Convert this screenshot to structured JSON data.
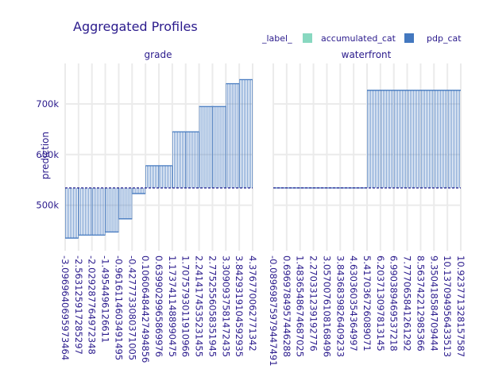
{
  "chart_data": {
    "type": "bar",
    "title": "Aggregated Profiles",
    "ylabel": "prediction",
    "ylim": [
      410000,
      780000
    ],
    "y_ticks": [
      500000,
      600000,
      700000
    ],
    "y_tick_labels": [
      "500k",
      "600k",
      "700k"
    ],
    "baseline": 534000,
    "grid": true,
    "legend": {
      "title": "_label_",
      "placement": "top-right",
      "entries": [
        {
          "name": "accumulated_cat",
          "color": "#88d8c0"
        },
        {
          "name": "pdp_cat",
          "color": "#4378bf"
        }
      ]
    },
    "panels": [
      {
        "name": "grade",
        "x_tick_labels": [
          "-3.0969640695973464",
          "-2.563125917285297",
          "-2.029287764972348",
          "-1.4954496126611",
          "-0.9616114603491495",
          "-0.4277733080371005",
          "0.10606484427494856",
          "0.6399029965869976",
          "1.1737411488990475",
          "1.7075793011910966",
          "2.2414174535231455",
          "2.7752556058351945",
          "3.3090937581472435",
          "3.8429319104592935",
          "4.376770062771342"
        ],
        "segments": [
          {
            "x_from": "-3.0969640695973464",
            "x_to": "-2.563125917285297",
            "value": 435000
          },
          {
            "x_from": "-2.563125917285297",
            "x_to": "-2.029287764972348",
            "value": 441000
          },
          {
            "x_from": "-2.029287764972348",
            "x_to": "-1.4954496126611",
            "value": 441000
          },
          {
            "x_from": "-1.4954496126611",
            "x_to": "-0.9616114603491495",
            "value": 447000
          },
          {
            "x_from": "-0.9616114603491495",
            "x_to": "-0.4277733080371005",
            "value": 473000
          },
          {
            "x_from": "-0.4277733080371005",
            "x_to": "0.10606484427494856",
            "value": 523000
          },
          {
            "x_from": "0.10606484427494856",
            "x_to": "0.6399029965869976",
            "value": 578000
          },
          {
            "x_from": "0.6399029965869976",
            "x_to": "1.1737411488990475",
            "value": 578000
          },
          {
            "x_from": "1.1737411488990475",
            "x_to": "1.7075793011910966",
            "value": 645000
          },
          {
            "x_from": "1.7075793011910966",
            "x_to": "2.2414174535231455",
            "value": 645000
          },
          {
            "x_from": "2.2414174535231455",
            "x_to": "2.7752556058351945",
            "value": 695000
          },
          {
            "x_from": "2.7752556058351945",
            "x_to": "3.3090937581472435",
            "value": 695000
          },
          {
            "x_from": "3.3090937581472435",
            "x_to": "3.8429319104592935",
            "value": 740000
          },
          {
            "x_from": "3.8429319104592935",
            "x_to": "4.376770062771342",
            "value": 748000
          }
        ]
      },
      {
        "name": "waterfront",
        "x_tick_labels": [
          "-0.08969875979447491",
          "0.6969784957446288",
          "1.4836548674687025",
          "2.270331239192776",
          "3.0570076108168496",
          "3.8436839826409233",
          "4.630360354364997",
          "5.417036726089071",
          "6.203713097813145",
          "6.990389469537218",
          "7.777065841261292",
          "8.563742212985366",
          "9.350418584709444",
          "10.137094956433513",
          "10.923771328157587"
        ],
        "segments": [
          {
            "x_from": "-0.08969875979447491",
            "x_to": "5.417036726089071",
            "value": 534000
          },
          {
            "x_from": "5.417036726089071",
            "x_to": "10.923771328157587",
            "value": 727000
          }
        ]
      }
    ]
  }
}
